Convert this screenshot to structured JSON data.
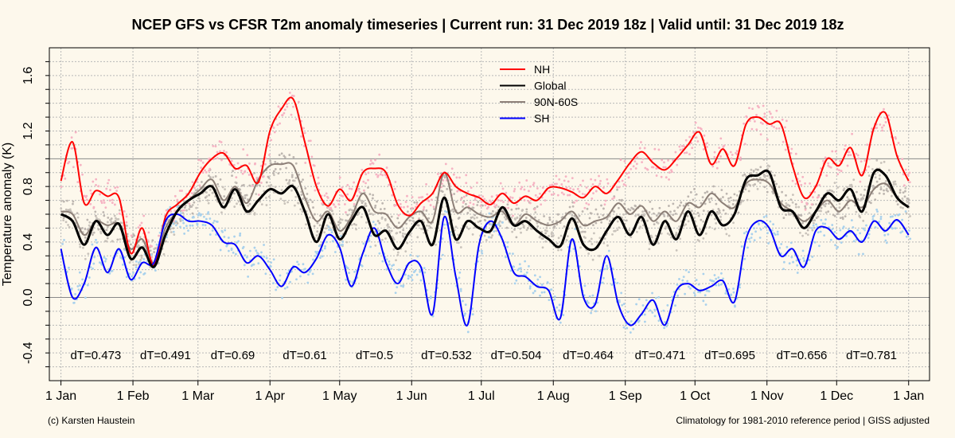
{
  "chart_data": {
    "type": "line",
    "title": "NCEP GFS vs CFSR T2m anomaly timeseries | Current run: 31 Dec 2019 18z | Valid until: 31 Dec 2019 18z",
    "ylabel": "Temperature anomaly (K)",
    "xlabel": "",
    "ylim": [
      -0.6,
      1.8
    ],
    "xlim": [
      -5,
      374
    ],
    "yticks": [
      -0.4,
      0.0,
      0.4,
      0.8,
      1.2,
      1.6
    ],
    "ytick_labels": [
      "-0.4",
      "0.0",
      "0.4",
      "0.8",
      "1.2",
      "1.6"
    ],
    "xticks": [
      {
        "label": "1 Jan",
        "day": 0
      },
      {
        "label": "1 Feb",
        "day": 31
      },
      {
        "label": "1 Mar",
        "day": 59
      },
      {
        "label": "1 Apr",
        "day": 90
      },
      {
        "label": "1 May",
        "day": 120
      },
      {
        "label": "1 Jun",
        "day": 151
      },
      {
        "label": "1 Jul",
        "day": 181
      },
      {
        "label": "1 Aug",
        "day": 212
      },
      {
        "label": "1 Sep",
        "day": 243
      },
      {
        "label": "1 Oct",
        "day": 273
      },
      {
        "label": "1 Nov",
        "day": 304
      },
      {
        "label": "1 Dec",
        "day": 334
      },
      {
        "label": "1 Jan",
        "day": 365
      }
    ],
    "hlines": [
      1.0,
      0.0
    ],
    "grid": true,
    "legend": "top-center",
    "series": [
      {
        "name": "NH",
        "color": "#ff0000",
        "dot_color": "#f6b3c3",
        "x": [
          0,
          5,
          10,
          15,
          20,
          25,
          30,
          35,
          40,
          45,
          50,
          55,
          60,
          65,
          70,
          75,
          80,
          85,
          90,
          95,
          100,
          105,
          110,
          115,
          120,
          125,
          130,
          135,
          140,
          145,
          150,
          155,
          160,
          165,
          170,
          175,
          180,
          185,
          190,
          195,
          200,
          205,
          210,
          215,
          220,
          225,
          230,
          235,
          240,
          245,
          250,
          255,
          260,
          265,
          270,
          275,
          280,
          285,
          290,
          295,
          300,
          305,
          310,
          315,
          320,
          325,
          330,
          335,
          340,
          345,
          350,
          355,
          360,
          365
        ],
        "values": [
          0.84,
          1.12,
          0.68,
          0.77,
          0.73,
          0.72,
          0.32,
          0.5,
          0.23,
          0.58,
          0.67,
          0.75,
          0.9,
          1.0,
          1.04,
          0.93,
          0.95,
          0.83,
          1.2,
          1.36,
          1.43,
          1.12,
          0.8,
          0.66,
          0.78,
          0.7,
          0.9,
          0.93,
          0.9,
          0.67,
          0.59,
          0.68,
          0.75,
          0.9,
          0.8,
          0.75,
          0.72,
          0.67,
          0.75,
          0.68,
          0.73,
          0.7,
          0.79,
          0.79,
          0.76,
          0.72,
          0.8,
          0.75,
          0.85,
          0.97,
          1.05,
          0.97,
          0.92,
          1.0,
          1.1,
          1.19,
          0.96,
          1.07,
          0.95,
          1.25,
          1.3,
          1.25,
          1.25,
          0.95,
          0.72,
          0.8,
          1.0,
          0.95,
          1.08,
          0.88,
          1.22,
          1.33,
          1.02,
          0.84
        ]
      },
      {
        "name": "Global",
        "color": "#000000",
        "dot_color": "#c9c3bb",
        "x": [
          0,
          5,
          10,
          15,
          20,
          25,
          30,
          35,
          40,
          45,
          50,
          55,
          60,
          65,
          70,
          75,
          80,
          85,
          90,
          95,
          100,
          105,
          110,
          115,
          120,
          125,
          130,
          135,
          140,
          145,
          150,
          155,
          160,
          165,
          170,
          175,
          180,
          185,
          190,
          195,
          200,
          205,
          210,
          215,
          220,
          225,
          230,
          235,
          240,
          245,
          250,
          255,
          260,
          265,
          270,
          275,
          280,
          285,
          290,
          295,
          300,
          305,
          310,
          315,
          320,
          325,
          330,
          335,
          340,
          345,
          350,
          355,
          360,
          365
        ],
        "values": [
          0.6,
          0.55,
          0.38,
          0.55,
          0.45,
          0.53,
          0.28,
          0.36,
          0.22,
          0.45,
          0.62,
          0.7,
          0.75,
          0.8,
          0.65,
          0.78,
          0.62,
          0.7,
          0.78,
          0.75,
          0.8,
          0.62,
          0.4,
          0.6,
          0.42,
          0.55,
          0.65,
          0.45,
          0.48,
          0.35,
          0.47,
          0.55,
          0.38,
          0.72,
          0.42,
          0.55,
          0.5,
          0.48,
          0.65,
          0.52,
          0.55,
          0.48,
          0.42,
          0.37,
          0.57,
          0.38,
          0.35,
          0.48,
          0.58,
          0.45,
          0.58,
          0.38,
          0.55,
          0.42,
          0.62,
          0.45,
          0.62,
          0.52,
          0.6,
          0.85,
          0.88,
          0.9,
          0.65,
          0.62,
          0.5,
          0.62,
          0.75,
          0.7,
          0.78,
          0.62,
          0.9,
          0.88,
          0.72,
          0.65
        ]
      },
      {
        "name": "90N-60S",
        "color": "#8c7f77",
        "dot_color": "#bdb6b0",
        "x": [
          0,
          5,
          10,
          15,
          20,
          25,
          30,
          35,
          40,
          45,
          50,
          55,
          60,
          65,
          70,
          75,
          80,
          85,
          90,
          95,
          100,
          105,
          110,
          115,
          120,
          125,
          130,
          135,
          140,
          145,
          150,
          155,
          160,
          165,
          170,
          175,
          180,
          185,
          190,
          195,
          200,
          205,
          210,
          215,
          220,
          225,
          230,
          235,
          240,
          245,
          250,
          255,
          260,
          265,
          270,
          275,
          280,
          285,
          290,
          295,
          300,
          305,
          310,
          315,
          320,
          325,
          330,
          335,
          340,
          345,
          350,
          355,
          360,
          365
        ],
        "values": [
          0.62,
          0.6,
          0.45,
          0.55,
          0.52,
          0.53,
          0.35,
          0.42,
          0.25,
          0.5,
          0.62,
          0.7,
          0.78,
          0.85,
          0.7,
          0.8,
          0.68,
          0.85,
          0.95,
          0.96,
          0.95,
          0.72,
          0.55,
          0.62,
          0.48,
          0.58,
          0.75,
          0.62,
          0.6,
          0.5,
          0.58,
          0.62,
          0.55,
          0.9,
          0.62,
          0.65,
          0.6,
          0.58,
          0.62,
          0.52,
          0.6,
          0.55,
          0.52,
          0.55,
          0.62,
          0.52,
          0.55,
          0.58,
          0.68,
          0.6,
          0.66,
          0.55,
          0.62,
          0.55,
          0.68,
          0.65,
          0.75,
          0.68,
          0.65,
          0.82,
          0.85,
          0.82,
          0.68,
          0.62,
          0.55,
          0.62,
          0.7,
          0.62,
          0.7,
          0.65,
          0.78,
          0.82,
          0.72,
          0.65
        ]
      },
      {
        "name": "SH",
        "color": "#0000ff",
        "dot_color": "#a9d1ec",
        "x": [
          0,
          5,
          10,
          15,
          20,
          25,
          30,
          35,
          40,
          45,
          50,
          55,
          60,
          65,
          70,
          75,
          80,
          85,
          90,
          95,
          100,
          105,
          110,
          115,
          120,
          125,
          130,
          135,
          140,
          145,
          150,
          155,
          160,
          165,
          170,
          175,
          180,
          185,
          190,
          195,
          200,
          205,
          210,
          215,
          220,
          225,
          230,
          235,
          240,
          245,
          250,
          255,
          260,
          265,
          270,
          275,
          280,
          285,
          290,
          295,
          300,
          305,
          310,
          315,
          320,
          325,
          330,
          335,
          340,
          345,
          350,
          355,
          360,
          365
        ],
        "values": [
          0.35,
          0.0,
          0.1,
          0.36,
          0.18,
          0.35,
          0.13,
          0.25,
          0.25,
          0.55,
          0.6,
          0.55,
          0.55,
          0.52,
          0.4,
          0.38,
          0.25,
          0.3,
          0.2,
          0.08,
          0.22,
          0.18,
          0.28,
          0.45,
          0.36,
          0.08,
          0.32,
          0.5,
          0.25,
          0.1,
          0.25,
          0.22,
          -0.12,
          0.58,
          0.15,
          -0.2,
          0.38,
          0.55,
          0.42,
          0.18,
          0.15,
          0.08,
          0.05,
          -0.15,
          0.42,
          0.0,
          -0.05,
          0.3,
          -0.05,
          -0.2,
          -0.12,
          -0.02,
          -0.2,
          0.05,
          0.1,
          0.05,
          0.08,
          0.12,
          -0.03,
          0.42,
          0.55,
          0.5,
          0.3,
          0.35,
          0.22,
          0.48,
          0.5,
          0.42,
          0.48,
          0.4,
          0.55,
          0.48,
          0.56,
          0.45
        ]
      }
    ],
    "annotations": [
      "dT=0.473",
      "dT=0.491",
      "dT=0.69",
      "dT=0.61",
      "dT=0.5",
      "dT=0.532",
      "dT=0.504",
      "dT=0.464",
      "dT=0.471",
      "dT=0.695",
      "dT=0.656",
      "dT=0.781"
    ],
    "annotation_days": [
      15,
      45,
      74,
      105,
      135,
      166,
      196,
      227,
      258,
      288,
      319,
      349
    ]
  },
  "footer": {
    "left": "(c) Karsten Haustein",
    "right": "Climatology for 1981-2010 reference period | GISS adjusted"
  }
}
